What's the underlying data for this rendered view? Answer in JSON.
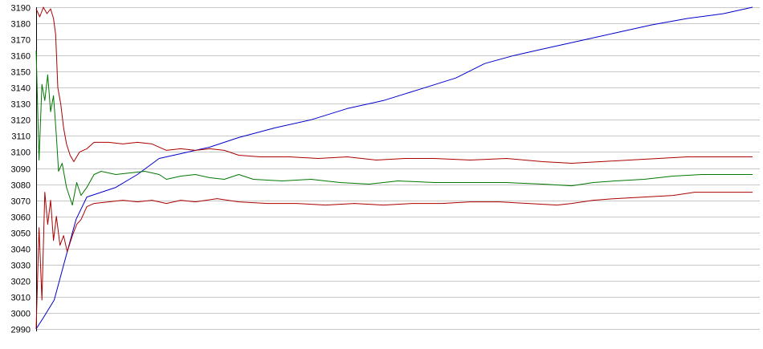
{
  "chart_data": {
    "type": "line",
    "title": "",
    "xlabel": "",
    "ylabel": "",
    "ylim": [
      2990,
      3190
    ],
    "xlim": [
      0,
      100
    ],
    "yticks": [
      2990,
      3000,
      3010,
      3020,
      3030,
      3040,
      3050,
      3060,
      3070,
      3080,
      3090,
      3100,
      3110,
      3120,
      3130,
      3140,
      3150,
      3160,
      3170,
      3180,
      3190
    ],
    "grid": "horizontal",
    "legend": "none",
    "series": [
      {
        "color": "#0000cc",
        "points": [
          [
            0,
            2990
          ],
          [
            1,
            2997
          ],
          [
            2.5,
            3008
          ],
          [
            4,
            3033
          ],
          [
            5.5,
            3058
          ],
          [
            7,
            3072
          ],
          [
            9,
            3075
          ],
          [
            11,
            3078
          ],
          [
            14,
            3086
          ],
          [
            17,
            3096
          ],
          [
            20,
            3099
          ],
          [
            24,
            3103
          ],
          [
            28,
            3109
          ],
          [
            33,
            3115
          ],
          [
            38,
            3120
          ],
          [
            43,
            3127
          ],
          [
            48,
            3132
          ],
          [
            53,
            3139
          ],
          [
            58,
            3146
          ],
          [
            62,
            3155
          ],
          [
            66,
            3160
          ],
          [
            70,
            3164
          ],
          [
            75,
            3169
          ],
          [
            80,
            3174
          ],
          [
            85,
            3179
          ],
          [
            90,
            3183
          ],
          [
            95,
            3186
          ],
          [
            99,
            3190
          ]
        ]
      },
      {
        "color": "#007700",
        "points": [
          [
            0,
            3163
          ],
          [
            0.4,
            3095
          ],
          [
            0.8,
            3142
          ],
          [
            1.2,
            3132
          ],
          [
            1.6,
            3148
          ],
          [
            2,
            3125
          ],
          [
            2.4,
            3135
          ],
          [
            2.8,
            3110
          ],
          [
            3.1,
            3088
          ],
          [
            3.6,
            3093
          ],
          [
            4.2,
            3078
          ],
          [
            5,
            3067
          ],
          [
            5.6,
            3081
          ],
          [
            6.2,
            3073
          ],
          [
            7,
            3078
          ],
          [
            8,
            3086
          ],
          [
            9,
            3088
          ],
          [
            11,
            3086
          ],
          [
            13,
            3087
          ],
          [
            15,
            3088
          ],
          [
            17,
            3086
          ],
          [
            18,
            3083
          ],
          [
            20,
            3085
          ],
          [
            22,
            3086
          ],
          [
            24,
            3084
          ],
          [
            26,
            3083
          ],
          [
            28,
            3086
          ],
          [
            30,
            3083
          ],
          [
            34,
            3082
          ],
          [
            38,
            3083
          ],
          [
            42,
            3081
          ],
          [
            46,
            3080
          ],
          [
            50,
            3082
          ],
          [
            55,
            3081
          ],
          [
            60,
            3081
          ],
          [
            65,
            3081
          ],
          [
            70,
            3080
          ],
          [
            74,
            3079
          ],
          [
            77,
            3081
          ],
          [
            80,
            3082
          ],
          [
            84,
            3083
          ],
          [
            88,
            3085
          ],
          [
            92,
            3086
          ],
          [
            96,
            3086
          ],
          [
            99,
            3086
          ]
        ]
      },
      {
        "color": "#aa0000",
        "points": [
          [
            0,
            3189
          ],
          [
            0.5,
            3184
          ],
          [
            1,
            3190
          ],
          [
            1.5,
            3186
          ],
          [
            2,
            3189
          ],
          [
            2.4,
            3183
          ],
          [
            2.7,
            3173
          ],
          [
            3,
            3140
          ],
          [
            3.4,
            3130
          ],
          [
            3.8,
            3115
          ],
          [
            4.2,
            3105
          ],
          [
            4.7,
            3098
          ],
          [
            5.2,
            3094
          ],
          [
            6,
            3100
          ],
          [
            7,
            3102
          ],
          [
            8,
            3106
          ],
          [
            10,
            3106
          ],
          [
            12,
            3105
          ],
          [
            14,
            3106
          ],
          [
            16,
            3105
          ],
          [
            18,
            3101
          ],
          [
            20,
            3102
          ],
          [
            22,
            3101
          ],
          [
            24,
            3102
          ],
          [
            26,
            3101
          ],
          [
            28,
            3098
          ],
          [
            31,
            3097
          ],
          [
            35,
            3097
          ],
          [
            39,
            3096
          ],
          [
            43,
            3097
          ],
          [
            47,
            3095
          ],
          [
            51,
            3096
          ],
          [
            55,
            3096
          ],
          [
            60,
            3095
          ],
          [
            65,
            3096
          ],
          [
            70,
            3094
          ],
          [
            74,
            3093
          ],
          [
            78,
            3094
          ],
          [
            82,
            3095
          ],
          [
            86,
            3096
          ],
          [
            90,
            3097
          ],
          [
            95,
            3097
          ],
          [
            99,
            3097
          ]
        ]
      },
      {
        "color": "#aa0000",
        "points": [
          [
            0,
            2990
          ],
          [
            0.4,
            3053
          ],
          [
            0.8,
            3008
          ],
          [
            1.2,
            3075
          ],
          [
            1.6,
            3055
          ],
          [
            2,
            3070
          ],
          [
            2.4,
            3045
          ],
          [
            2.8,
            3060
          ],
          [
            3.3,
            3042
          ],
          [
            3.8,
            3048
          ],
          [
            4.3,
            3038
          ],
          [
            5,
            3048
          ],
          [
            5.6,
            3055
          ],
          [
            6.2,
            3058
          ],
          [
            7,
            3066
          ],
          [
            8,
            3068
          ],
          [
            10,
            3069
          ],
          [
            12,
            3070
          ],
          [
            14,
            3069
          ],
          [
            16,
            3070
          ],
          [
            18,
            3068
          ],
          [
            20,
            3070
          ],
          [
            22,
            3069
          ],
          [
            25,
            3071
          ],
          [
            28,
            3069
          ],
          [
            32,
            3068
          ],
          [
            36,
            3068
          ],
          [
            40,
            3067
          ],
          [
            44,
            3068
          ],
          [
            48,
            3067
          ],
          [
            52,
            3068
          ],
          [
            56,
            3068
          ],
          [
            60,
            3069
          ],
          [
            64,
            3069
          ],
          [
            68,
            3068
          ],
          [
            72,
            3067
          ],
          [
            74,
            3068
          ],
          [
            77,
            3070
          ],
          [
            80,
            3071
          ],
          [
            84,
            3072
          ],
          [
            88,
            3073
          ],
          [
            91,
            3075
          ],
          [
            94,
            3075
          ],
          [
            97,
            3075
          ],
          [
            99,
            3075
          ]
        ]
      }
    ]
  }
}
